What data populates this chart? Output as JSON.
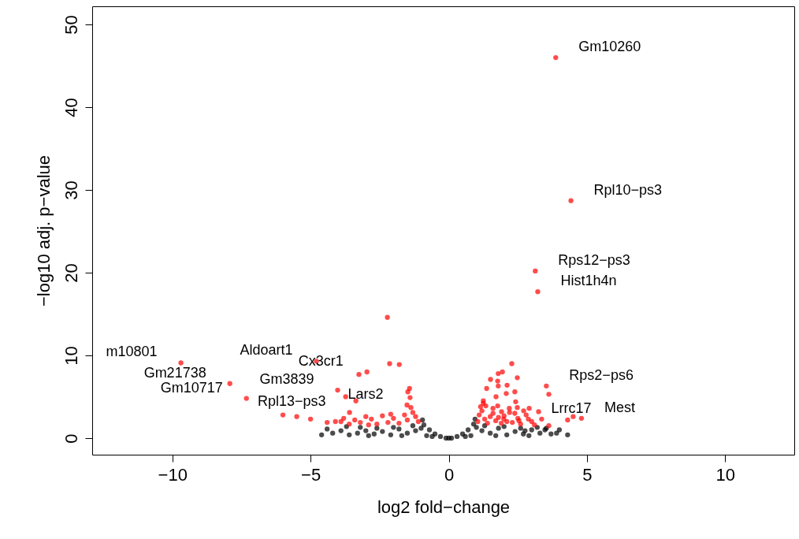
{
  "chart_data": {
    "type": "scatter",
    "xlabel": "log2 fold−change",
    "ylabel": "−log10 adj. p−value",
    "xlim": [
      -12.9,
      12.5
    ],
    "ylim": [
      -2,
      52.2
    ],
    "xticks": [
      -10,
      -5,
      0,
      5,
      10
    ],
    "yticks": [
      0,
      10,
      20,
      30,
      40,
      50
    ],
    "marker": "circle",
    "series": [
      {
        "color": "#000000",
        "x": [
          -0.9,
          -0.7,
          -0.5,
          -0.3,
          -0.1,
          0,
          0.1,
          0.3,
          0.5,
          0.7,
          0.9,
          -0.8,
          -0.6,
          0.6,
          0.8,
          -0.95,
          0.95,
          -1.0,
          1.0,
          -1.2,
          -1.5,
          -1.8,
          -2.1,
          -2.4,
          -2.7,
          -3.0,
          -3.3,
          -3.6,
          -3.9,
          -4.2,
          -4.6,
          -1.3,
          -2.0,
          -2.6,
          -3.2,
          -1.7,
          -2.9,
          -3.7,
          -4.4,
          3.48,
          3.53,
          2.76,
          4.0,
          3.9,
          4.3,
          1.2,
          1.5,
          1.8,
          2.1,
          2.4,
          2.7,
          3.0,
          3.3,
          1.3,
          2.0,
          2.6,
          3.2,
          1.7,
          2.9,
          3.7
        ],
        "values": [
          1.6,
          1.0,
          0.5,
          0.2,
          0,
          0,
          0,
          0.2,
          0.5,
          1.0,
          1.7,
          0.3,
          0.2,
          0.2,
          0.3,
          2.2,
          2.3,
          1.2,
          1.3,
          0.9,
          0.6,
          1.1,
          0.4,
          0.8,
          0.5,
          0.9,
          0.6,
          0.4,
          0.9,
          0.6,
          0.4,
          1.5,
          1.3,
          1.2,
          1.3,
          0.3,
          0.3,
          1.4,
          1.1,
          1.0,
          1.2,
          0.9,
          1.0,
          0.6,
          0.4,
          0.9,
          0.6,
          1.2,
          0.4,
          0.8,
          0.5,
          1.0,
          0.6,
          1.5,
          1.4,
          1.2,
          1.3,
          0.3,
          0.3,
          0.5
        ]
      },
      {
        "color": "#ff0000",
        "x": [
          3.87,
          4.42,
          3.13,
          3.22,
          -2.22,
          -2.14,
          -1.79,
          -3.25,
          -2.96,
          -3.73,
          -3.36,
          -3.59,
          -1.42,
          -1.48,
          -1.4,
          -1.51,
          -1.37,
          -4.02,
          2.28,
          1.94,
          1.79,
          2.48,
          1.51,
          1.77,
          2.11,
          1.79,
          1.37,
          2.08,
          2.39,
          1.71,
          1.25,
          2.42,
          1.77,
          1.34,
          2.19,
          2.48,
          2.91,
          1.91,
          2.39,
          2.71,
          2.88,
          2.54,
          1.99,
          3.53,
          3.62,
          3.25,
          3.36,
          3.62,
          -9.69,
          -7.92,
          -7.32,
          -4.79,
          -3.9,
          -1.1,
          -1.2,
          -1.3,
          -1.5,
          -1.6,
          -1.8,
          -2.0,
          -2.2,
          -2.4,
          -2.6,
          -2.8,
          -3.0,
          -3.2,
          -3.4,
          -3.6,
          -3.8,
          -4.1,
          -4.4,
          -2.1,
          -2.9,
          -5.0,
          -5.5,
          -6.0,
          1.05,
          1.1,
          1.2,
          1.3,
          1.4,
          1.5,
          1.6,
          1.7,
          1.8,
          1.9,
          2.0,
          2.1,
          2.2,
          2.3,
          2.5,
          2.6,
          2.8,
          3.0,
          3.1,
          1.15,
          1.25,
          1.6,
          4.3,
          4.5,
          4.8
        ],
        "values": [
          46.0,
          28.7,
          20.2,
          17.7,
          14.6,
          9.0,
          8.9,
          7.7,
          8.0,
          5.0,
          4.5,
          3.1,
          6.0,
          5.6,
          4.9,
          4.0,
          3.7,
          5.8,
          9.0,
          8.0,
          7.8,
          7.3,
          7.1,
          6.9,
          6.4,
          6.3,
          6.0,
          5.4,
          5.6,
          5.0,
          4.5,
          4.4,
          3.9,
          3.9,
          3.6,
          3.7,
          3.6,
          3.2,
          3.0,
          3.3,
          2.3,
          2.1,
          2.3,
          6.3,
          5.3,
          3.2,
          2.3,
          1.5,
          9.1,
          6.6,
          4.8,
          9.3,
          2.0,
          2.0,
          2.6,
          3.1,
          2.2,
          2.8,
          1.8,
          2.4,
          1.9,
          2.7,
          1.7,
          2.3,
          2.6,
          1.9,
          2.2,
          1.7,
          2.4,
          2.0,
          1.9,
          2.9,
          1.6,
          2.3,
          2.6,
          2.8,
          2.0,
          2.8,
          3.3,
          2.3,
          1.8,
          2.6,
          3.0,
          2.1,
          2.5,
          1.8,
          2.7,
          2.0,
          3.1,
          1.9,
          2.4,
          1.7,
          2.8,
          2.0,
          1.6,
          3.8,
          4.2,
          3.6,
          2.2,
          2.6,
          2.4
        ]
      }
    ],
    "annotations": [
      {
        "text": "Gm10260",
        "x": 3.87,
        "y": 46.0
      },
      {
        "text": "Rpl10−ps3",
        "x": 4.42,
        "y": 28.7
      },
      {
        "text": "Rps12−ps3",
        "x": 3.13,
        "y": 20.2
      },
      {
        "text": "Hist1h4n",
        "x": 3.22,
        "y": 17.7
      },
      {
        "text": "m10801",
        "x": -9.69,
        "y": 9.1
      },
      {
        "text": "Aldoart1",
        "x": -4.79,
        "y": 9.3
      },
      {
        "text": "Cx3cr1",
        "x": -2.96,
        "y": 8.0
      },
      {
        "text": "Gm21738",
        "x": -7.92,
        "y": 6.6
      },
      {
        "text": "Gm10717",
        "x": -7.32,
        "y": 4.8
      },
      {
        "text": "Gm3839",
        "x": -4.02,
        "y": 5.8
      },
      {
        "text": "Rpl13−ps3",
        "x": -3.59,
        "y": 3.1
      },
      {
        "text": "Lars2",
        "x": -1.51,
        "y": 4.0
      },
      {
        "text": "Rps2−ps6",
        "x": 3.53,
        "y": 6.3
      },
      {
        "text": "Mest",
        "x": 4.8,
        "y": 2.4
      },
      {
        "text": "Lrrc17",
        "x": 2.88,
        "y": 2.3
      }
    ]
  }
}
